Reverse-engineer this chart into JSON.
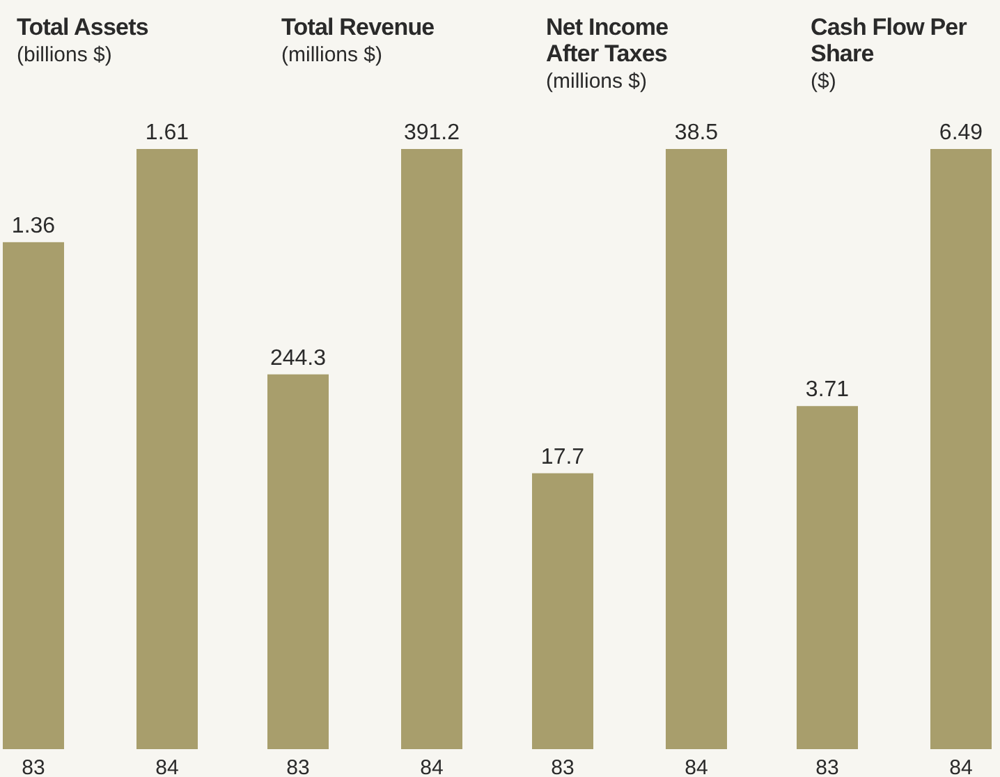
{
  "chart_data": [
    {
      "type": "bar",
      "title": "Total Assets",
      "subtitle": "(billions $)",
      "categories": [
        "83",
        "84"
      ],
      "values": [
        1.36,
        1.61
      ],
      "color": "#a89e6c",
      "data_labels": true
    },
    {
      "type": "bar",
      "title": "Total Revenue",
      "subtitle": "(millions $)",
      "categories": [
        "83",
        "84"
      ],
      "values": [
        244.3,
        391.2
      ],
      "color": "#a89e6c",
      "data_labels": true
    },
    {
      "type": "bar",
      "title": "Net Income After Taxes",
      "subtitle": "(millions $)",
      "categories": [
        "83",
        "84"
      ],
      "values": [
        17.7,
        38.5
      ],
      "color": "#a89e6c",
      "data_labels": true
    },
    {
      "type": "bar",
      "title": "Cash Flow Per Share",
      "subtitle": "($)",
      "categories": [
        "83",
        "84"
      ],
      "values": [
        3.71,
        6.49
      ],
      "color": "#a89e6c",
      "data_labels": true
    }
  ]
}
